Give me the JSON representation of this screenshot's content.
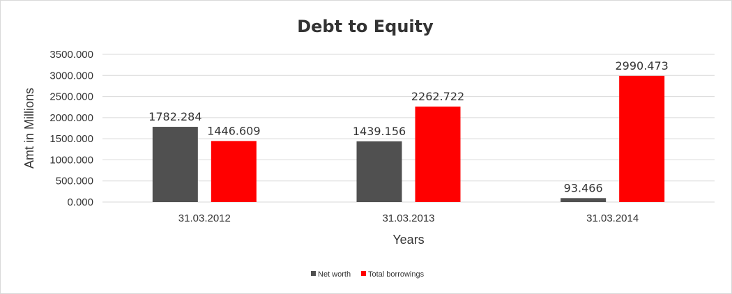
{
  "chart_data": {
    "type": "bar",
    "title": "Debt to Equity",
    "xlabel": "Years",
    "ylabel": "Amt in Millions",
    "categories": [
      "31.03.2012",
      "31.03.2013",
      "31.03.2014"
    ],
    "series": [
      {
        "name": "Net worth",
        "values": [
          1782.284,
          1439.156,
          93.466
        ],
        "labels": [
          "1782.284",
          "1439.156",
          "93.466"
        ],
        "color": "#505050"
      },
      {
        "name": "Total borrowings",
        "values": [
          1446.609,
          2262.722,
          2990.473
        ],
        "labels": [
          "1446.609",
          "2262.722",
          "2990.473"
        ],
        "color": "#ff0000"
      }
    ],
    "ylim": [
      0,
      3500
    ],
    "yticks": [
      "0.000",
      "500.000",
      "1000.000",
      "1500.000",
      "2000.000",
      "2500.000",
      "3000.000",
      "3500.000"
    ],
    "grid": true,
    "legend": "bottom"
  }
}
